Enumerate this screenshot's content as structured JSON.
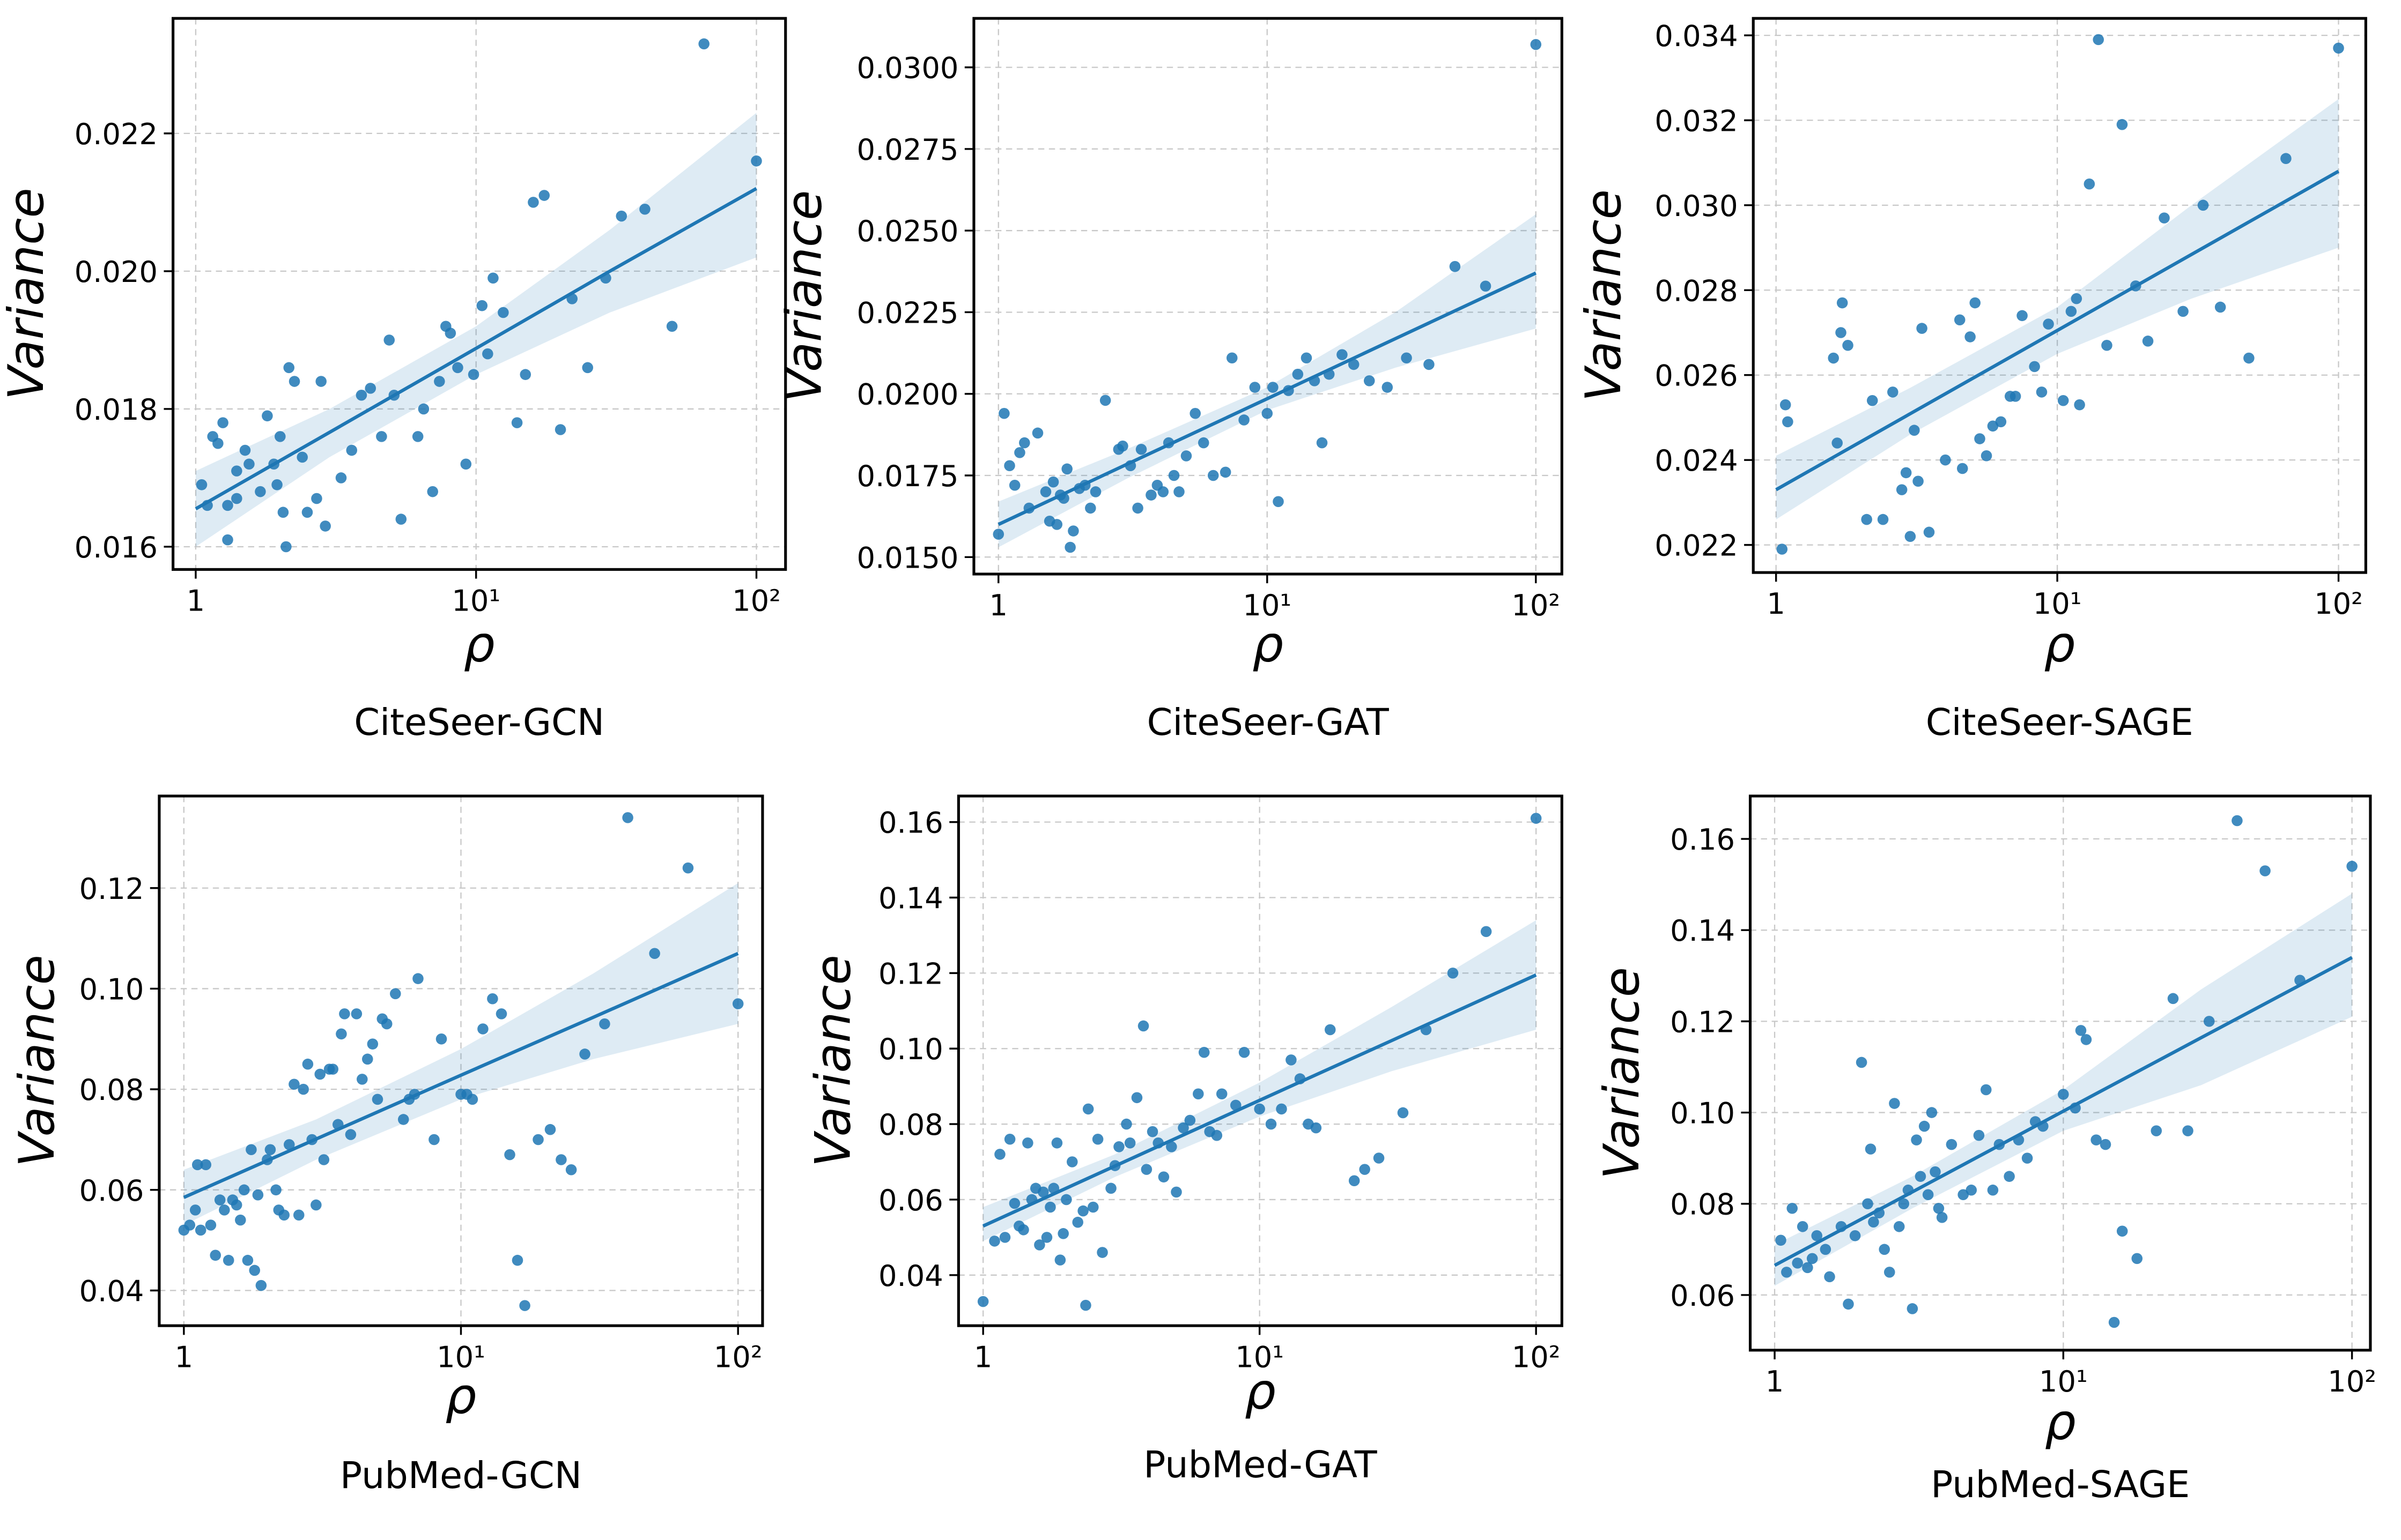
{
  "chart_data": [
    {
      "type": "scatter",
      "title": "CiteSeer-GCN",
      "xlabel": "ρ",
      "ylabel": "Variance",
      "xscale": "log",
      "grid": true,
      "color": "#1f77b4",
      "xlim": [
        0.83,
        127
      ],
      "ylim": [
        0.01567,
        0.02367
      ],
      "xticks": [
        1,
        {
          "value": 10,
          "label": "10¹"
        },
        {
          "value": 100,
          "label": "10²"
        }
      ],
      "yticks": [
        0.016,
        0.018,
        {
          "value": 0.02,
          "label": "0.020"
        },
        0.022
      ],
      "x": [
        1.05,
        1.1,
        1.15,
        1.2,
        1.25,
        1.3,
        1.3,
        1.4,
        1.4,
        1.5,
        1.55,
        1.7,
        1.8,
        1.9,
        1.95,
        2.0,
        2.05,
        2.1,
        2.15,
        2.25,
        2.4,
        2.5,
        2.7,
        2.8,
        2.9,
        3.3,
        3.6,
        3.9,
        4.2,
        4.6,
        4.9,
        5.1,
        5.4,
        6.2,
        6.5,
        7.0,
        7.4,
        7.8,
        8.1,
        8.6,
        9.2,
        9.8,
        10.5,
        11,
        11.5,
        12.5,
        14,
        15,
        16,
        17.5,
        20,
        22,
        25,
        29,
        33,
        40,
        50,
        65,
        100
      ],
      "y": [
        0.0169,
        0.0166,
        0.0176,
        0.0175,
        0.0178,
        0.0161,
        0.0166,
        0.0167,
        0.0171,
        0.0174,
        0.0172,
        0.0168,
        0.0179,
        0.0172,
        0.0169,
        0.0176,
        0.0165,
        0.016,
        0.0186,
        0.0184,
        0.0173,
        0.0165,
        0.0167,
        0.0184,
        0.0163,
        0.017,
        0.0174,
        0.0182,
        0.0183,
        0.0176,
        0.019,
        0.0182,
        0.0164,
        0.0176,
        0.018,
        0.0168,
        0.0184,
        0.0192,
        0.0191,
        0.0186,
        0.0172,
        0.0185,
        0.0195,
        0.0188,
        0.0199,
        0.0194,
        0.0178,
        0.0185,
        0.021,
        0.0211,
        0.0177,
        0.0196,
        0.0186,
        0.0199,
        0.0208,
        0.0209,
        0.0192,
        0.0233,
        0.0216
      ],
      "fit": {
        "x": [
          1,
          3,
          10,
          30,
          100
        ],
        "y": [
          0.01655,
          0.01766,
          0.01888,
          0.02,
          0.0212
        ],
        "lower": [
          0.016,
          0.0173,
          0.0185,
          0.0194,
          0.0202
        ],
        "upper": [
          0.0171,
          0.018,
          0.0192,
          0.0206,
          0.0223
        ]
      }
    },
    {
      "type": "scatter",
      "title": "CiteSeer-GAT",
      "xlabel": "ρ",
      "ylabel": "Variance",
      "xscale": "log",
      "grid": true,
      "color": "#1f77b4",
      "xlim": [
        0.81,
        125
      ],
      "ylim": [
        0.01448,
        0.0315
      ],
      "xticks": [
        1,
        {
          "value": 10,
          "label": "10¹"
        },
        {
          "value": 100,
          "label": "10²"
        }
      ],
      "yticks": [
        {
          "value": 0.015,
          "label": "0.0150"
        },
        0.0175,
        {
          "value": 0.02,
          "label": "0.0200"
        },
        0.0225,
        {
          "value": 0.025,
          "label": "0.0250"
        },
        0.0275,
        {
          "value": 0.03,
          "label": "0.0300"
        }
      ],
      "x": [
        1.0,
        1.05,
        1.1,
        1.15,
        1.2,
        1.25,
        1.3,
        1.4,
        1.5,
        1.55,
        1.6,
        1.65,
        1.7,
        1.75,
        1.8,
        1.85,
        1.9,
        2.0,
        2.1,
        2.2,
        2.3,
        2.5,
        2.8,
        2.9,
        3.1,
        3.3,
        3.4,
        3.7,
        3.9,
        4.1,
        4.3,
        4.5,
        4.7,
        5.0,
        5.4,
        5.8,
        6.3,
        7.0,
        7.4,
        8.2,
        9,
        10,
        10.5,
        11,
        12,
        13,
        14,
        15,
        16,
        17,
        19,
        21,
        24,
        28,
        33,
        40,
        50,
        65,
        100
      ],
      "y": [
        0.0157,
        0.0194,
        0.0178,
        0.0172,
        0.0182,
        0.0185,
        0.0165,
        0.0188,
        0.017,
        0.0161,
        0.0173,
        0.016,
        0.0169,
        0.0168,
        0.0177,
        0.0153,
        0.0158,
        0.0171,
        0.0172,
        0.0165,
        0.017,
        0.0198,
        0.0183,
        0.0184,
        0.0178,
        0.0165,
        0.0183,
        0.0169,
        0.0172,
        0.017,
        0.0185,
        0.0175,
        0.017,
        0.0181,
        0.0194,
        0.0185,
        0.0175,
        0.0176,
        0.0211,
        0.0192,
        0.0202,
        0.0194,
        0.0202,
        0.0167,
        0.0201,
        0.0206,
        0.0211,
        0.0204,
        0.0185,
        0.0206,
        0.0212,
        0.0209,
        0.0204,
        0.0202,
        0.0211,
        0.0209,
        0.0239,
        0.0233,
        0.0307
      ],
      "fit": {
        "x": [
          1,
          3,
          10,
          30,
          100
        ],
        "y": [
          0.016,
          0.01784,
          0.01985,
          0.02169,
          0.0237
        ],
        "lower": [
          0.0153,
          0.0174,
          0.0195,
          0.0208,
          0.022
        ],
        "upper": [
          0.0167,
          0.0183,
          0.0202,
          0.0225,
          0.0255
        ]
      }
    },
    {
      "type": "scatter",
      "title": "CiteSeer-SAGE",
      "xlabel": "ρ",
      "ylabel": "Variance",
      "xscale": "log",
      "grid": true,
      "color": "#1f77b4",
      "xlim": [
        0.83,
        125
      ],
      "ylim": [
        0.02135,
        0.0344
      ],
      "xticks": [
        1,
        {
          "value": 10,
          "label": "10¹"
        },
        {
          "value": 100,
          "label": "10²"
        }
      ],
      "yticks": [
        0.022,
        0.024,
        0.026,
        0.028,
        {
          "value": 0.03,
          "label": "0.030"
        },
        0.032,
        0.034
      ],
      "x": [
        1.05,
        1.08,
        1.1,
        1.6,
        1.65,
        1.7,
        1.72,
        1.8,
        2.1,
        2.2,
        2.4,
        2.6,
        2.8,
        2.9,
        3.0,
        3.1,
        3.2,
        3.3,
        3.5,
        4.0,
        4.5,
        4.6,
        4.9,
        5.1,
        5.3,
        5.6,
        5.9,
        6.3,
        6.8,
        7.1,
        7.5,
        8.3,
        8.8,
        9.3,
        10.5,
        11.2,
        11.7,
        12,
        13,
        14,
        15,
        17,
        19,
        21,
        24,
        28,
        33,
        38,
        48,
        65,
        100
      ],
      "y": [
        0.0219,
        0.0253,
        0.0249,
        0.0264,
        0.0244,
        0.027,
        0.0277,
        0.0267,
        0.0226,
        0.0254,
        0.0226,
        0.0256,
        0.0233,
        0.0237,
        0.0222,
        0.0247,
        0.0235,
        0.0271,
        0.0223,
        0.024,
        0.0273,
        0.0238,
        0.0269,
        0.0277,
        0.0245,
        0.0241,
        0.0248,
        0.0249,
        0.0255,
        0.0255,
        0.0274,
        0.0262,
        0.0256,
        0.0272,
        0.0254,
        0.0275,
        0.0278,
        0.0253,
        0.0305,
        0.0339,
        0.0267,
        0.0319,
        0.0281,
        0.0268,
        0.0297,
        0.0275,
        0.03,
        0.0276,
        0.0264,
        0.0311,
        0.0337
      ],
      "fit": {
        "x": [
          1,
          3,
          10,
          30,
          100
        ],
        "y": [
          0.0233,
          0.02509,
          0.02705,
          0.02884,
          0.0308
        ],
        "lower": [
          0.0226,
          0.0246,
          0.0265,
          0.0278,
          0.029
        ],
        "upper": [
          0.0241,
          0.0257,
          0.0276,
          0.03,
          0.0325
        ]
      }
    },
    {
      "type": "scatter",
      "title": "PubMed-GCN",
      "xlabel": "ρ",
      "ylabel": "Variance",
      "xscale": "log",
      "grid": true,
      "color": "#1f77b4",
      "xlim": [
        0.815,
        122.6
      ],
      "ylim": [
        0.033,
        0.1383
      ],
      "xticks": [
        1,
        {
          "value": 10,
          "label": "10¹"
        },
        {
          "value": 100,
          "label": "10²"
        }
      ],
      "yticks": [
        0.04,
        0.06,
        0.08,
        {
          "value": 0.1,
          "label": "0.10"
        },
        0.12
      ],
      "x": [
        1.0,
        1.05,
        1.1,
        1.12,
        1.15,
        1.2,
        1.25,
        1.3,
        1.35,
        1.4,
        1.45,
        1.5,
        1.55,
        1.6,
        1.65,
        1.7,
        1.75,
        1.8,
        1.85,
        1.9,
        2.0,
        2.05,
        2.15,
        2.2,
        2.3,
        2.4,
        2.5,
        2.6,
        2.7,
        2.8,
        2.9,
        3.0,
        3.1,
        3.2,
        3.35,
        3.45,
        3.6,
        3.7,
        3.8,
        4.0,
        4.2,
        4.4,
        4.6,
        4.8,
        5.0,
        5.2,
        5.4,
        5.8,
        6.2,
        6.5,
        6.8,
        7.0,
        8.0,
        8.5,
        10,
        10.5,
        11,
        12,
        13,
        14,
        15,
        16,
        17,
        19,
        21,
        23,
        25,
        28,
        33,
        40,
        50,
        66,
        100
      ],
      "y": [
        0.052,
        0.053,
        0.056,
        0.065,
        0.052,
        0.065,
        0.053,
        0.047,
        0.058,
        0.056,
        0.046,
        0.058,
        0.057,
        0.054,
        0.06,
        0.046,
        0.068,
        0.044,
        0.059,
        0.041,
        0.066,
        0.068,
        0.06,
        0.056,
        0.055,
        0.069,
        0.081,
        0.055,
        0.08,
        0.085,
        0.07,
        0.057,
        0.083,
        0.066,
        0.084,
        0.084,
        0.073,
        0.091,
        0.095,
        0.071,
        0.095,
        0.082,
        0.086,
        0.089,
        0.078,
        0.094,
        0.093,
        0.099,
        0.074,
        0.078,
        0.079,
        0.102,
        0.07,
        0.09,
        0.079,
        0.079,
        0.078,
        0.092,
        0.098,
        0.095,
        0.067,
        0.046,
        0.037,
        0.07,
        0.072,
        0.066,
        0.064,
        0.087,
        0.093,
        0.134,
        0.107,
        0.124,
        0.097
      ],
      "fit": {
        "x": [
          1,
          3,
          10,
          30,
          100
        ],
        "y": [
          0.0585,
          0.0701,
          0.0828,
          0.0943,
          0.107
        ],
        "lower": [
          0.053,
          0.066,
          0.078,
          0.086,
          0.093
        ],
        "upper": [
          0.064,
          0.074,
          0.088,
          0.103,
          0.121
        ]
      }
    },
    {
      "type": "scatter",
      "title": "PubMed-GAT",
      "xlabel": "ρ",
      "ylabel": "Variance",
      "xscale": "log",
      "grid": true,
      "color": "#1f77b4",
      "xlim": [
        0.815,
        124
      ],
      "ylim": [
        0.0266,
        0.1669
      ],
      "xticks": [
        1,
        {
          "value": 10,
          "label": "10¹"
        },
        {
          "value": 100,
          "label": "10²"
        }
      ],
      "yticks": [
        0.04,
        0.06,
        0.08,
        {
          "value": 0.1,
          "label": "0.10"
        },
        0.12,
        0.14,
        0.16
      ],
      "x": [
        1.0,
        1.1,
        1.15,
        1.2,
        1.25,
        1.3,
        1.35,
        1.4,
        1.45,
        1.5,
        1.55,
        1.6,
        1.65,
        1.7,
        1.75,
        1.8,
        1.85,
        1.9,
        1.95,
        2.0,
        2.1,
        2.2,
        2.3,
        2.35,
        2.4,
        2.5,
        2.6,
        2.7,
        2.9,
        3.0,
        3.1,
        3.3,
        3.4,
        3.6,
        3.8,
        3.9,
        4.1,
        4.3,
        4.5,
        4.8,
        5.0,
        5.3,
        5.6,
        6.0,
        6.3,
        6.6,
        7.0,
        7.3,
        8.2,
        8.8,
        10,
        11,
        12,
        13,
        14,
        15,
        16,
        18,
        22,
        24,
        27,
        33,
        40,
        50,
        66,
        100
      ],
      "y": [
        0.033,
        0.049,
        0.072,
        0.05,
        0.076,
        0.059,
        0.053,
        0.052,
        0.075,
        0.06,
        0.063,
        0.048,
        0.062,
        0.05,
        0.058,
        0.063,
        0.075,
        0.044,
        0.051,
        0.06,
        0.07,
        0.054,
        0.057,
        0.032,
        0.084,
        0.058,
        0.076,
        0.046,
        0.063,
        0.069,
        0.074,
        0.08,
        0.075,
        0.087,
        0.106,
        0.068,
        0.078,
        0.075,
        0.066,
        0.074,
        0.062,
        0.079,
        0.081,
        0.088,
        0.099,
        0.078,
        0.077,
        0.088,
        0.085,
        0.099,
        0.084,
        0.08,
        0.084,
        0.097,
        0.092,
        0.08,
        0.079,
        0.105,
        0.065,
        0.068,
        0.071,
        0.083,
        0.105,
        0.12,
        0.131,
        0.161
      ],
      "fit": {
        "x": [
          1,
          3,
          10,
          30,
          100
        ],
        "y": [
          0.053,
          0.0689,
          0.0863,
          0.1021,
          0.1195
        ],
        "lower": [
          0.049,
          0.066,
          0.082,
          0.094,
          0.105
        ],
        "upper": [
          0.058,
          0.072,
          0.091,
          0.111,
          0.134
        ]
      }
    },
    {
      "type": "scatter",
      "title": "PubMed-SAGE",
      "xlabel": "ρ",
      "ylabel": "Variance",
      "xscale": "log",
      "grid": true,
      "color": "#1f77b4",
      "xlim": [
        0.823,
        115.8
      ],
      "ylim": [
        0.0479,
        0.1694
      ],
      "xticks": [
        1,
        {
          "value": 10,
          "label": "10¹"
        },
        {
          "value": 100,
          "label": "10²"
        }
      ],
      "yticks": [
        0.06,
        0.08,
        {
          "value": 0.1,
          "label": "0.10"
        },
        0.12,
        0.14,
        0.16
      ],
      "x": [
        1.05,
        1.1,
        1.15,
        1.2,
        1.25,
        1.3,
        1.35,
        1.4,
        1.5,
        1.55,
        1.7,
        1.8,
        1.9,
        2.0,
        2.1,
        2.15,
        2.2,
        2.3,
        2.4,
        2.5,
        2.6,
        2.7,
        2.8,
        2.9,
        3.0,
        3.1,
        3.2,
        3.3,
        3.4,
        3.5,
        3.6,
        3.7,
        3.8,
        4.1,
        4.5,
        4.8,
        5.1,
        5.4,
        5.7,
        6.0,
        6.5,
        7.0,
        7.5,
        8.0,
        8.5,
        10,
        11,
        11.5,
        12,
        13,
        14,
        15,
        16,
        18,
        21,
        24,
        27,
        32,
        40,
        50,
        66,
        100
      ],
      "y": [
        0.072,
        0.065,
        0.079,
        0.067,
        0.075,
        0.066,
        0.068,
        0.073,
        0.07,
        0.064,
        0.075,
        0.058,
        0.073,
        0.111,
        0.08,
        0.092,
        0.076,
        0.078,
        0.07,
        0.065,
        0.102,
        0.075,
        0.08,
        0.083,
        0.057,
        0.094,
        0.086,
        0.097,
        0.082,
        0.1,
        0.087,
        0.079,
        0.077,
        0.093,
        0.082,
        0.083,
        0.095,
        0.105,
        0.083,
        0.093,
        0.086,
        0.094,
        0.09,
        0.098,
        0.097,
        0.104,
        0.101,
        0.118,
        0.116,
        0.094,
        0.093,
        0.054,
        0.074,
        0.068,
        0.096,
        0.125,
        0.096,
        0.12,
        0.164,
        0.153,
        0.129,
        0.154
      ],
      "fit": {
        "x": [
          1,
          3,
          10,
          30,
          100
        ],
        "y": [
          0.0665,
          0.0826,
          0.1003,
          0.1164,
          0.134
        ],
        "lower": [
          0.062,
          0.079,
          0.096,
          0.106,
          0.121
        ],
        "upper": [
          0.071,
          0.086,
          0.105,
          0.127,
          0.148
        ]
      }
    }
  ]
}
